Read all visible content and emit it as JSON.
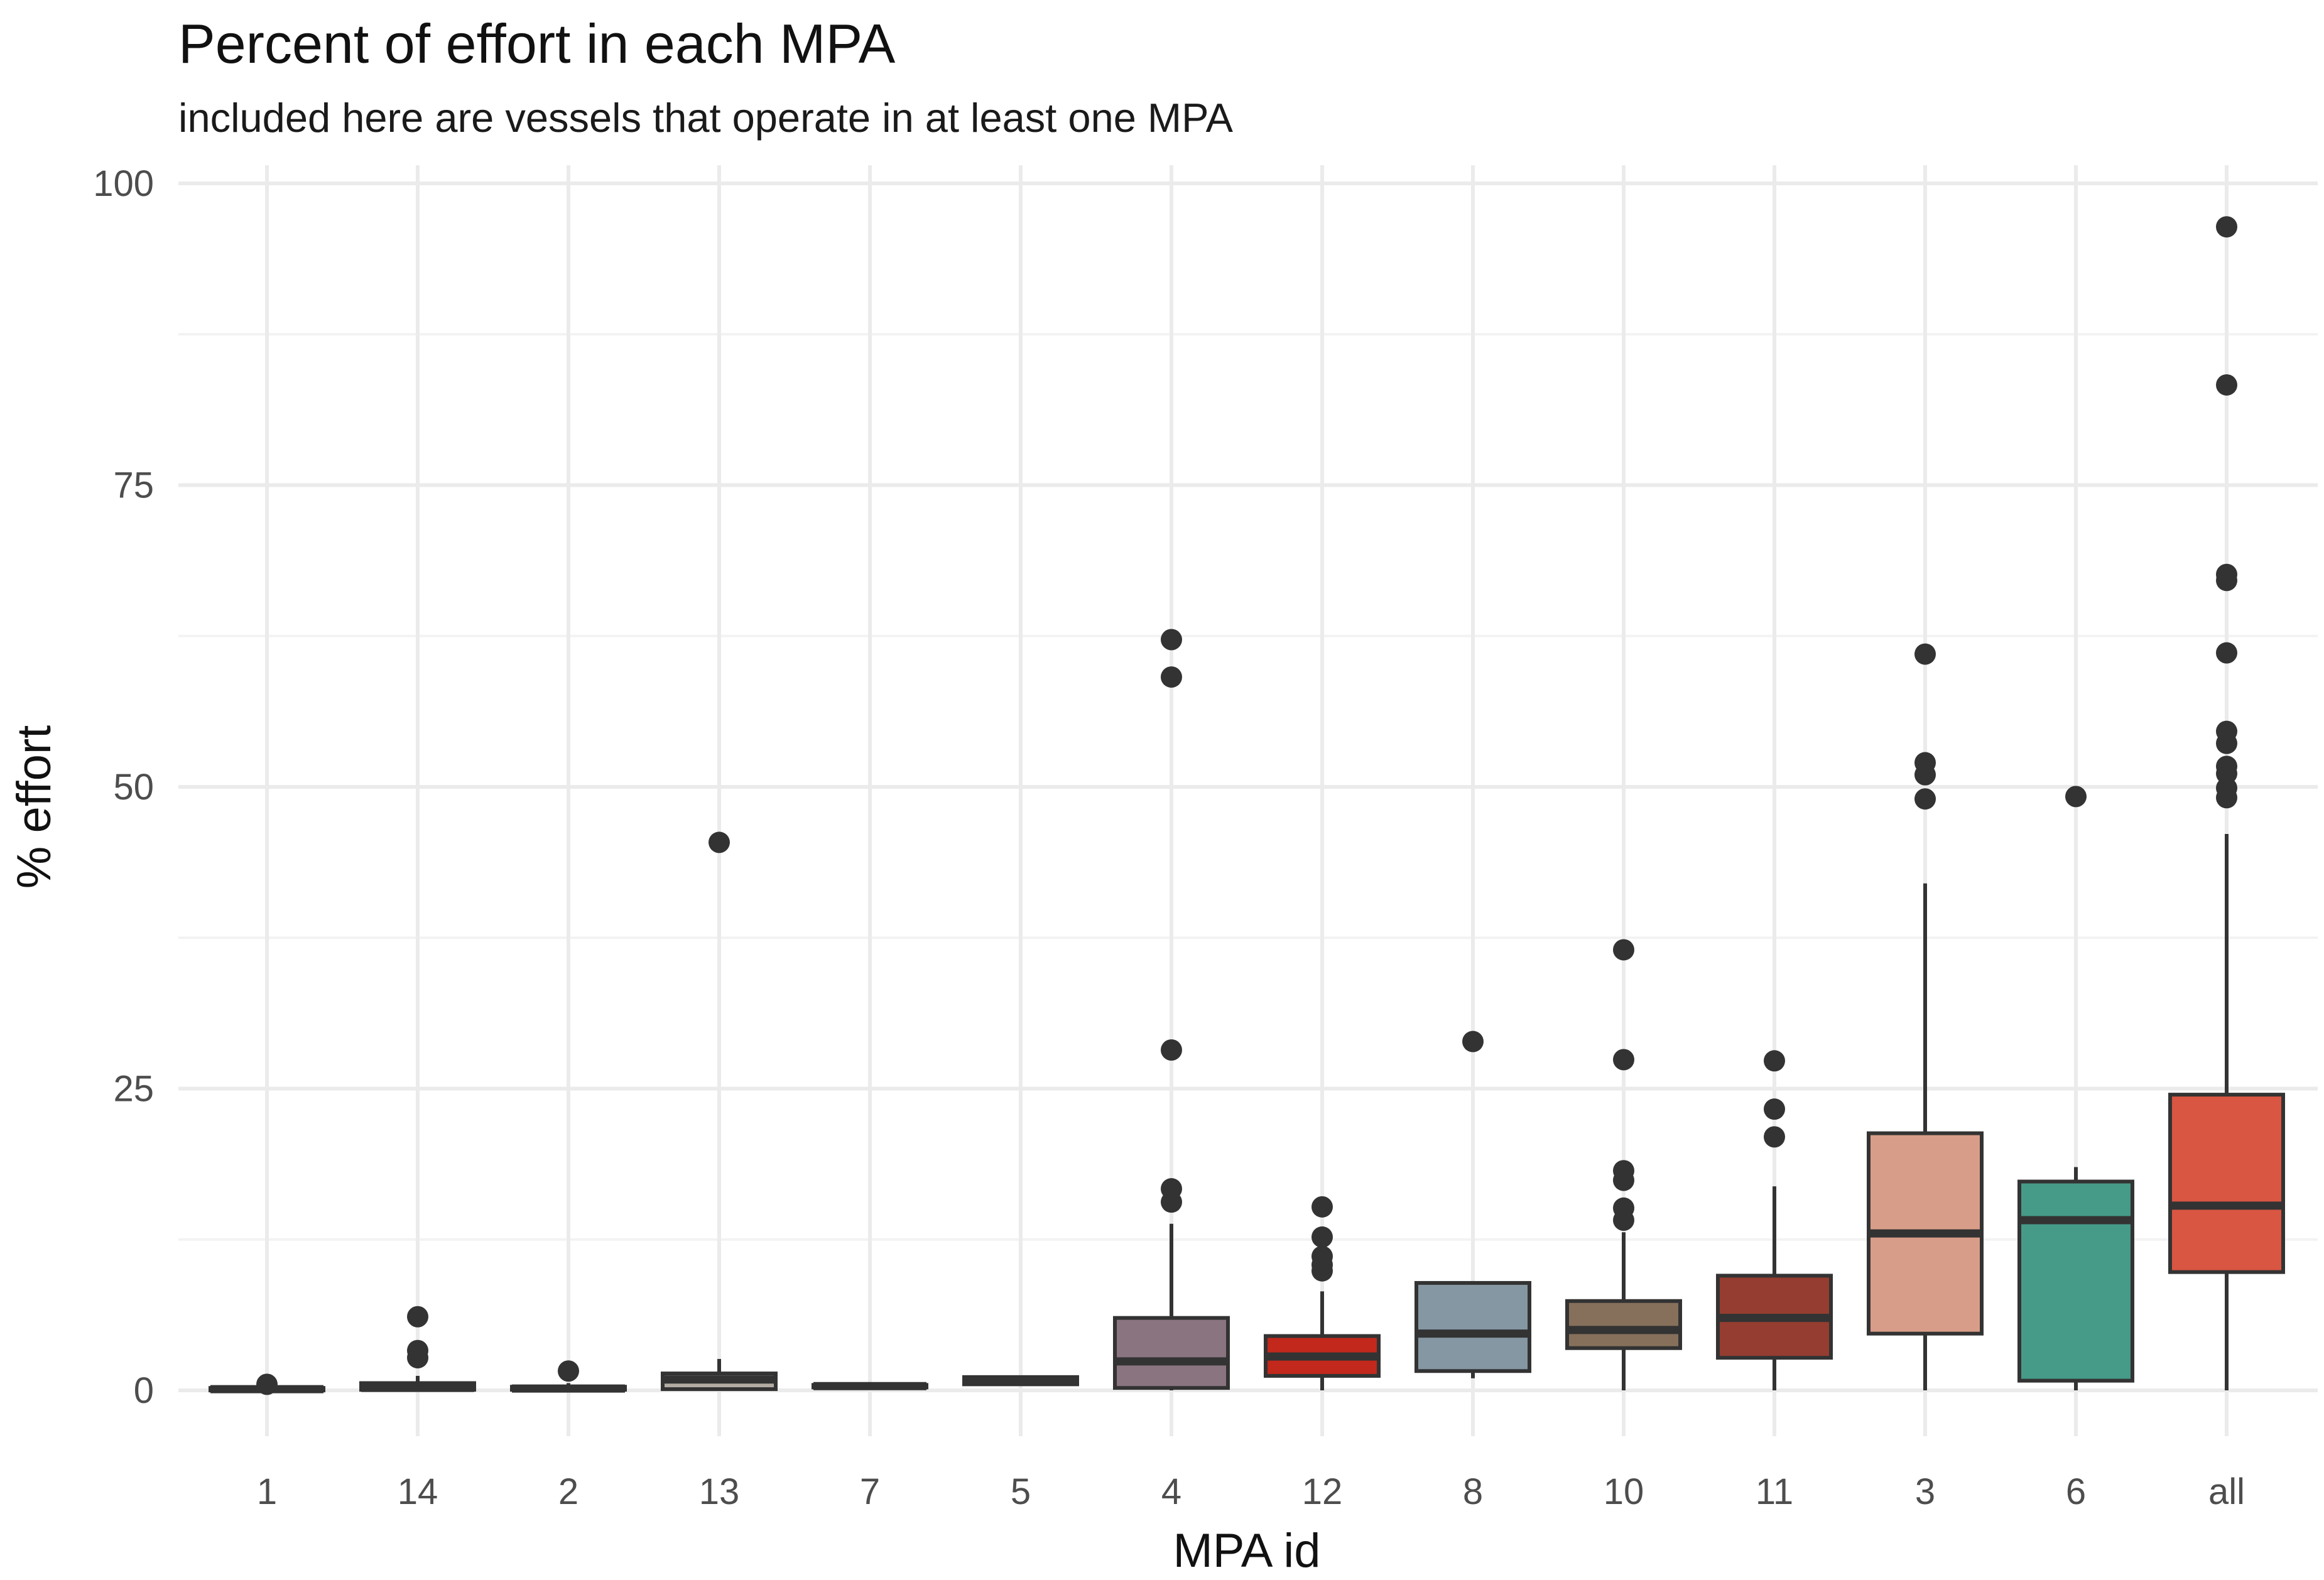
{
  "chart_data": {
    "type": "boxplot",
    "title": "Percent of effort in each MPA",
    "subtitle": "included here are vessels that operate in at least one MPA",
    "xlabel": "MPA id",
    "ylabel": "% effort",
    "ylim": [
      -4,
      102
    ],
    "yticks": [
      "0",
      "25",
      "50",
      "75",
      "100"
    ],
    "grid": true,
    "legend": "none",
    "categories": [
      "1",
      "14",
      "2",
      "13",
      "7",
      "5",
      "4",
      "12",
      "8",
      "10",
      "11",
      "3",
      "6",
      "all"
    ],
    "boxes": [
      {
        "category": "1",
        "color": "#8b8b8b",
        "whisker_low": 0.0,
        "q1": 0.05,
        "median": 0.1,
        "q3": 0.2,
        "whisker_high": 0.35,
        "outliers": [
          0.5
        ]
      },
      {
        "category": "14",
        "color": "#6e6e6e",
        "whisker_low": 0.0,
        "q1": 0.05,
        "median": 0.2,
        "q3": 0.6,
        "whisker_high": 1.2,
        "outliers": [
          2.7,
          3.3,
          6.1
        ]
      },
      {
        "category": "2",
        "color": "#7a7a7a",
        "whisker_low": 0.0,
        "q1": 0.05,
        "median": 0.15,
        "q3": 0.3,
        "whisker_high": 0.6,
        "outliers": [
          1.6
        ]
      },
      {
        "category": "13",
        "color": "#b2aca3",
        "whisker_low": 0.0,
        "q1": 0.1,
        "median": 0.9,
        "q3": 1.4,
        "whisker_high": 2.6,
        "outliers": [
          45.4
        ]
      },
      {
        "category": "7",
        "color": "#a8a8a8",
        "whisker_low": 0.2,
        "q1": 0.25,
        "median": 0.35,
        "q3": 0.45,
        "whisker_high": 0.5,
        "outliers": []
      },
      {
        "category": "5",
        "color": "#8e8e8e",
        "whisker_low": 0.5,
        "q1": 0.5,
        "median": 0.8,
        "q3": 1.1,
        "whisker_high": 1.1,
        "outliers": []
      },
      {
        "category": "4",
        "color": "#8a7480",
        "whisker_low": 0.0,
        "q1": 0.2,
        "median": 2.4,
        "q3": 6.0,
        "whisker_high": 13.8,
        "outliers": [
          15.6,
          16.7,
          28.2,
          59.1,
          62.2
        ]
      },
      {
        "category": "12",
        "color": "#c2281c",
        "whisker_low": 0.0,
        "q1": 1.2,
        "median": 2.8,
        "q3": 4.5,
        "whisker_high": 8.2,
        "outliers": [
          9.9,
          10.4,
          11.1,
          12.7,
          15.2
        ]
      },
      {
        "category": "8",
        "color": "#8497a3",
        "whisker_low": 1.0,
        "q1": 1.6,
        "median": 4.7,
        "q3": 8.9,
        "whisker_high": 8.9,
        "outliers": [
          28.9
        ]
      },
      {
        "category": "10",
        "color": "#86705b",
        "whisker_low": 0.0,
        "q1": 3.5,
        "median": 5.0,
        "q3": 7.4,
        "whisker_high": 13.1,
        "outliers": [
          14.1,
          15.1,
          17.4,
          18.2,
          27.4,
          36.5
        ]
      },
      {
        "category": "11",
        "color": "#953d30",
        "whisker_low": 0.0,
        "q1": 2.7,
        "median": 6.0,
        "q3": 9.5,
        "whisker_high": 16.9,
        "outliers": [
          21.0,
          23.3,
          27.3
        ]
      },
      {
        "category": "3",
        "color": "#d89d88",
        "whisker_low": 0.0,
        "q1": 4.7,
        "median": 13.0,
        "q3": 21.3,
        "whisker_high": 42.0,
        "outliers": [
          49.0,
          51.0,
          52.0,
          61.0
        ]
      },
      {
        "category": "6",
        "color": "#459a88",
        "whisker_low": 0.0,
        "q1": 0.8,
        "median": 14.1,
        "q3": 17.3,
        "whisker_high": 18.5,
        "outliers": [
          49.2
        ]
      },
      {
        "category": "all",
        "color": "#d95642",
        "whisker_low": 0.0,
        "q1": 9.8,
        "median": 15.3,
        "q3": 24.5,
        "whisker_high": 46.1,
        "outliers": [
          49.1,
          49.9,
          51.1,
          51.7,
          53.6,
          54.6,
          61.1,
          67.1,
          67.6,
          83.3,
          96.4
        ]
      }
    ]
  }
}
